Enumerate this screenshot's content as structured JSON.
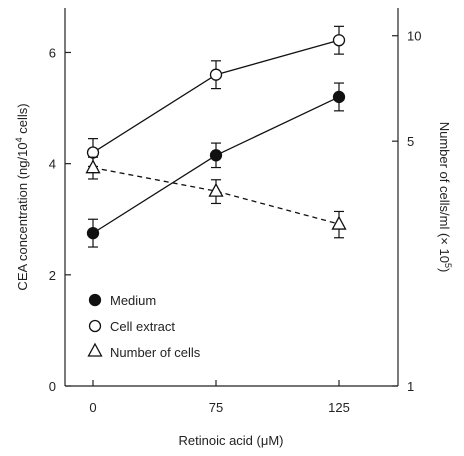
{
  "chart_data": {
    "type": "line",
    "title": "",
    "xlabel": "Retinoic acid (μM)",
    "ylabel_left": "CEA concentration (ng/10",
    "ylabel_left_sup": "4",
    "ylabel_left_tail": " cells)",
    "ylabel_right": "Number of cells/ml (× 10",
    "ylabel_right_sup": "5",
    "ylabel_right_tail": ")",
    "categories": [
      "0",
      "75",
      "125"
    ],
    "ylim_left": [
      0,
      6.8
    ],
    "yticks_left": [
      "0",
      "2",
      "4",
      "6"
    ],
    "ylim_right": [
      1,
      12
    ],
    "yscale_right": "log",
    "yticks_right": [
      "1",
      "5",
      "10"
    ],
    "grid": false,
    "legend_position": "bottom-left",
    "series": [
      {
        "name": "Medium",
        "marker": "filled-circle",
        "line": "solid",
        "axis": "left",
        "values": [
          2.75,
          4.15,
          5.2
        ],
        "errors": [
          0.25,
          0.22,
          0.25
        ]
      },
      {
        "name": "Cell extract",
        "marker": "open-circle",
        "line": "solid",
        "axis": "left",
        "values": [
          4.2,
          5.6,
          6.22
        ],
        "errors": [
          0.25,
          0.25,
          0.25
        ]
      },
      {
        "name": "Number of cells",
        "marker": "open-triangle",
        "line": "dashed",
        "axis": "right",
        "values": [
          4.2,
          3.6,
          2.9
        ],
        "errors": [
          0.3,
          0.28,
          0.25
        ]
      }
    ]
  }
}
